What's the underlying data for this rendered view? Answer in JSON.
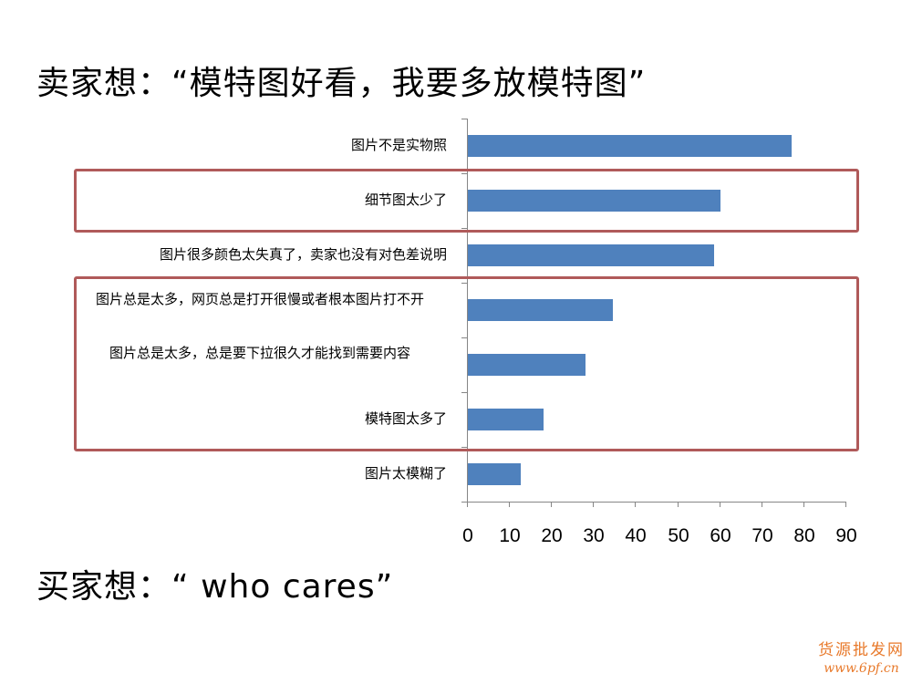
{
  "slide": {
    "title": "卖家想：“模特图好看，我要多放模特图”",
    "subtitle": "买家想：“ who cares”",
    "watermark": {
      "line1": "货源批发网",
      "line2": "www.6pf.cn"
    }
  },
  "chart_data": {
    "type": "bar",
    "orientation": "horizontal",
    "title": "",
    "xlabel": "",
    "ylabel": "",
    "xlim": [
      0,
      90
    ],
    "x_ticks": [
      "0",
      "10",
      "20",
      "30",
      "40",
      "50",
      "60",
      "70",
      "80",
      "90"
    ],
    "grid": false,
    "legend": null,
    "categories": [
      "图片不是实物照",
      "细节图太少了",
      "图片很多颜色太失真了，卖家也没有对色差说明",
      "图片总是太多，网页总是打开很慢或者根本图片打不开",
      "图片总是太多，总是要下拉很久才能找到需要内容",
      "模特图太多了",
      "图片太模糊了"
    ],
    "values": [
      77,
      60,
      58.5,
      34.5,
      28,
      18,
      12.5
    ],
    "bar_color": "#4f81bd",
    "annotations": [
      {
        "type": "highlight-box",
        "color": "#b05a5a",
        "covers": [
          "细节图太少了"
        ]
      },
      {
        "type": "highlight-box",
        "color": "#b05a5a",
        "covers": [
          "图片总是太多，网页总是打开很慢或者根本图片打不开",
          "图片总是太多，总是要下拉很久才能找到需要内容",
          "模特图太多了"
        ]
      }
    ]
  }
}
